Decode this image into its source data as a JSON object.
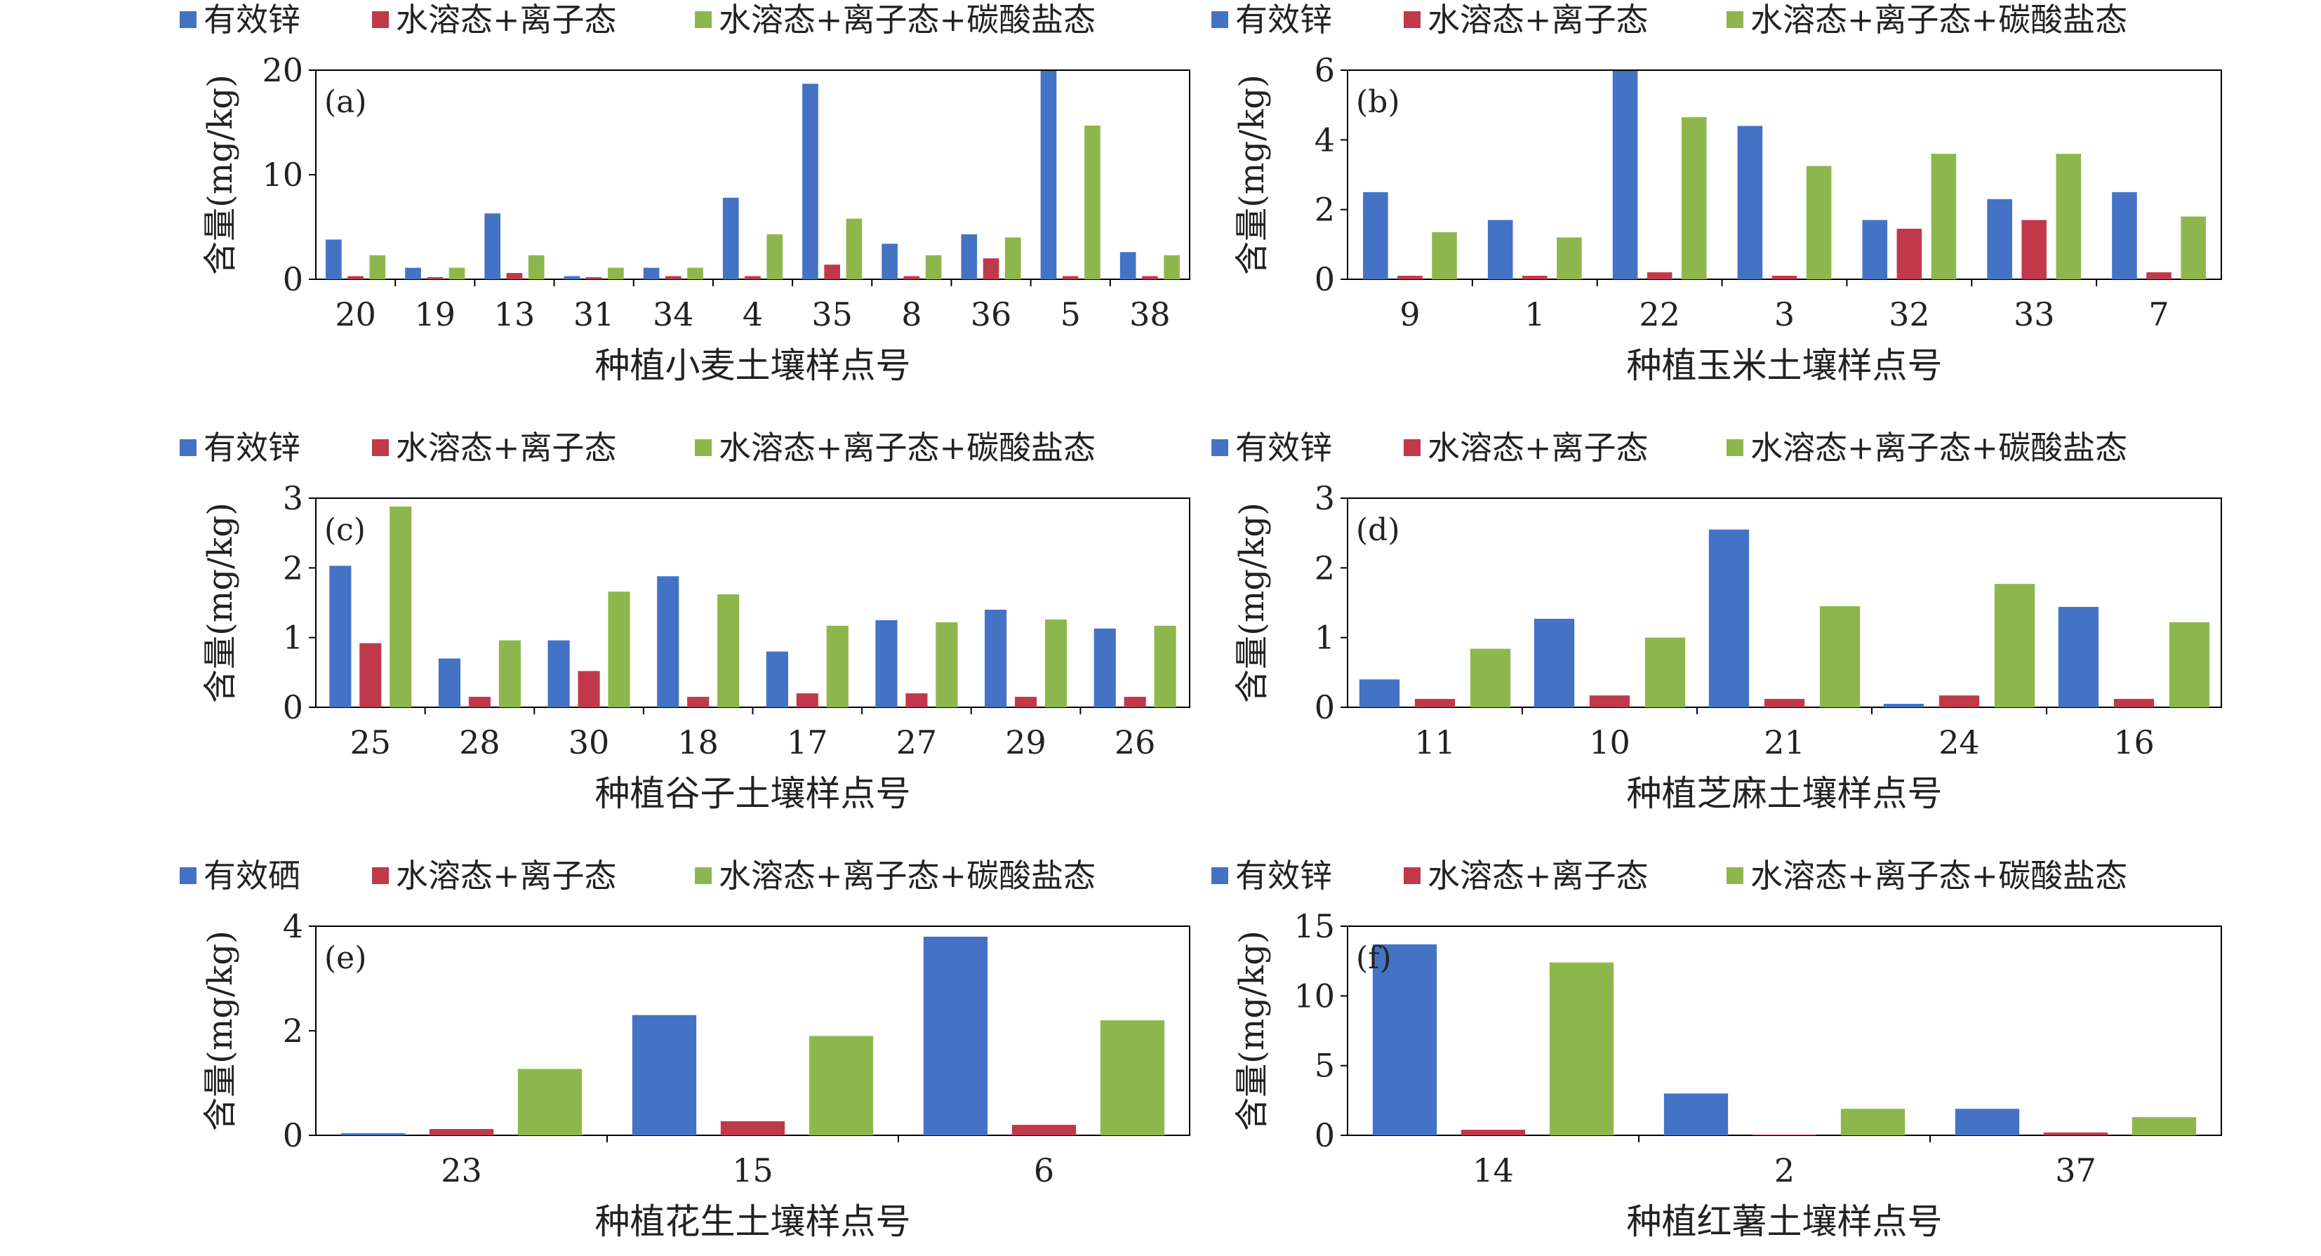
{
  "colors": {
    "blue": "#4472C4",
    "red": "#C0394B",
    "green": "#8DB74C"
  },
  "chart_data": [
    {
      "type": "bar",
      "panel_label": "(a)",
      "legend": [
        "有效锌",
        "水溶态+离子态",
        "水溶态+离子态+碳酸盐态"
      ],
      "ylabel": "含量(mg/kg)",
      "xlabel": "种植小麦土壤样点号",
      "ylim": [
        0,
        20
      ],
      "yticks": [
        0,
        10,
        20
      ],
      "categories": [
        "20",
        "19",
        "13",
        "31",
        "34",
        "4",
        "35",
        "8",
        "36",
        "5",
        "38"
      ],
      "series": [
        {
          "name": "有效锌",
          "values": [
            3.8,
            1.1,
            6.3,
            0.3,
            1.1,
            7.8,
            18.7,
            3.4,
            4.3,
            20.0,
            2.6
          ]
        },
        {
          "name": "水溶态+离子态",
          "values": [
            0.3,
            0.2,
            0.6,
            0.2,
            0.3,
            0.3,
            1.4,
            0.3,
            2.0,
            0.3,
            0.3
          ]
        },
        {
          "name": "水溶态+离子态+碳酸盐态",
          "values": [
            2.3,
            1.1,
            2.3,
            1.1,
            1.1,
            4.3,
            5.8,
            2.3,
            4.0,
            14.7,
            2.3
          ]
        }
      ]
    },
    {
      "type": "bar",
      "panel_label": "(b)",
      "legend": [
        "有效锌",
        "水溶态+离子态",
        "水溶态+离子态+碳酸盐态"
      ],
      "ylabel": "含量(mg/kg)",
      "xlabel": "种植玉米土壤样点号",
      "ylim": [
        0,
        6
      ],
      "yticks": [
        0,
        2,
        4,
        6
      ],
      "categories": [
        "9",
        "1",
        "22",
        "3",
        "32",
        "33",
        "7"
      ],
      "series": [
        {
          "name": "有效锌",
          "values": [
            2.5,
            1.7,
            6.0,
            4.4,
            1.7,
            2.3,
            2.5
          ]
        },
        {
          "name": "水溶态+离子态",
          "values": [
            0.1,
            0.1,
            0.2,
            0.1,
            1.45,
            1.7,
            0.2
          ]
        },
        {
          "name": "水溶态+离子态+碳酸盐态",
          "values": [
            1.35,
            1.2,
            4.65,
            3.25,
            3.6,
            3.6,
            1.8
          ]
        }
      ]
    },
    {
      "type": "bar",
      "panel_label": "(c)",
      "legend": [
        "有效锌",
        "水溶态+离子态",
        "水溶态+离子态+碳酸盐态"
      ],
      "ylabel": "含量(mg/kg)",
      "xlabel": "种植谷子土壤样点号",
      "ylim": [
        0,
        3
      ],
      "yticks": [
        0,
        1,
        2,
        3
      ],
      "categories": [
        "25",
        "28",
        "30",
        "18",
        "17",
        "27",
        "29",
        "26"
      ],
      "series": [
        {
          "name": "有效锌",
          "values": [
            2.03,
            0.7,
            0.96,
            1.88,
            0.8,
            1.25,
            1.4,
            1.13
          ]
        },
        {
          "name": "水溶态+离子态",
          "values": [
            0.92,
            0.15,
            0.52,
            0.15,
            0.2,
            0.2,
            0.15,
            0.15
          ]
        },
        {
          "name": "水溶态+离子态+碳酸盐态",
          "values": [
            2.88,
            0.96,
            1.66,
            1.62,
            1.17,
            1.22,
            1.26,
            1.17
          ]
        }
      ]
    },
    {
      "type": "bar",
      "panel_label": "(d)",
      "legend": [
        "有效锌",
        "水溶态+离子态",
        "水溶态+离子态+碳酸盐态"
      ],
      "ylabel": "含量(mg/kg)",
      "xlabel": "种植芝麻土壤样点号",
      "ylim": [
        0,
        3
      ],
      "yticks": [
        0,
        1,
        2,
        3
      ],
      "categories": [
        "11",
        "10",
        "21",
        "24",
        "16"
      ],
      "series": [
        {
          "name": "有效锌",
          "values": [
            0.4,
            1.27,
            2.55,
            0.05,
            1.44
          ]
        },
        {
          "name": "水溶态+离子态",
          "values": [
            0.12,
            0.17,
            0.12,
            0.17,
            0.12
          ]
        },
        {
          "name": "水溶态+离子态+碳酸盐态",
          "values": [
            0.84,
            1.0,
            1.45,
            1.77,
            1.22
          ]
        }
      ]
    },
    {
      "type": "bar",
      "panel_label": "(e)",
      "legend": [
        "有效硒",
        "水溶态+离子态",
        "水溶态+离子态+碳酸盐态"
      ],
      "ylabel": "含量(mg/kg)",
      "xlabel": "种植花生土壤样点号",
      "ylim": [
        0,
        4
      ],
      "yticks": [
        0,
        2,
        4
      ],
      "categories": [
        "23",
        "15",
        "6"
      ],
      "series": [
        {
          "name": "有效硒",
          "values": [
            0.04,
            2.3,
            3.8
          ]
        },
        {
          "name": "水溶态+离子态",
          "values": [
            0.12,
            0.27,
            0.2
          ]
        },
        {
          "name": "水溶态+离子态+碳酸盐态",
          "values": [
            1.27,
            1.9,
            2.2
          ]
        }
      ]
    },
    {
      "type": "bar",
      "panel_label": "(f)",
      "legend": [
        "有效锌",
        "水溶态+离子态",
        "水溶态+离子态+碳酸盐态"
      ],
      "ylabel": "含量(mg/kg)",
      "xlabel": "种植红薯土壤样点号",
      "ylim": [
        0,
        15
      ],
      "yticks": [
        0,
        5,
        10,
        15
      ],
      "categories": [
        "14",
        "2",
        "37"
      ],
      "series": [
        {
          "name": "有效锌",
          "values": [
            13.7,
            3.0,
            1.9
          ]
        },
        {
          "name": "水溶态+离子态",
          "values": [
            0.4,
            0.05,
            0.2
          ]
        },
        {
          "name": "水溶态+离子态+碳酸盐态",
          "values": [
            12.4,
            1.9,
            1.3
          ]
        }
      ]
    }
  ]
}
